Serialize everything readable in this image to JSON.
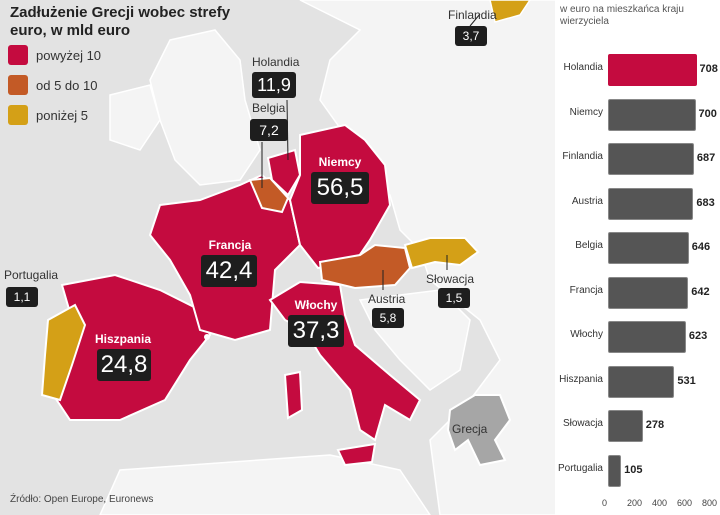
{
  "title": "Zadłużenie Grecji wobec strefy euro, w mld euro",
  "legend": [
    {
      "label": "powyżej 10",
      "color": "#c40b3f"
    },
    {
      "label": "od 5 do 10",
      "color": "#c35a26"
    },
    {
      "label": "poniżej 5",
      "color": "#d4a017"
    }
  ],
  "colors": {
    "sea": "#e3e3e3",
    "land": "#f4f4f4",
    "greece": "#a6a6a6",
    "box": "#1e1e1e",
    "bar_highlight": "#c40b3f",
    "bar_default": "#555555"
  },
  "countries": {
    "niemcy": {
      "name": "Niemcy",
      "value": "56,5"
    },
    "francja": {
      "name": "Francja",
      "value": "42,4"
    },
    "wlochy": {
      "name": "Włochy",
      "value": "37,3"
    },
    "hiszpania": {
      "name": "Hiszpania",
      "value": "24,8"
    },
    "holandia": {
      "name": "Holandia",
      "value": "11,9"
    },
    "belgia": {
      "name": "Belgia",
      "value": "7,2"
    },
    "austria": {
      "name": "Austria",
      "value": "5,8"
    },
    "finlandia": {
      "name": "Finlandia",
      "value": "3,7"
    },
    "slowacja": {
      "name": "Słowacja",
      "value": "1,5"
    },
    "portugalia": {
      "name": "Portugalia",
      "value": "1,1"
    },
    "grecja": {
      "name": "Grecja"
    }
  },
  "chart_data": {
    "type": "bar",
    "orientation": "horizontal",
    "subtitle": "w euro na mieszkańca kraju wierzyciela",
    "categories": [
      "Holandia",
      "Niemcy",
      "Finlandia",
      "Austria",
      "Belgia",
      "Francja",
      "Włochy",
      "Hiszpania",
      "Słowacja",
      "Portugalia"
    ],
    "values": [
      708,
      700,
      687,
      683,
      646,
      642,
      623,
      531,
      278,
      105
    ],
    "highlight": "Holandia",
    "xlim": [
      0,
      800
    ],
    "xticks": [
      "0",
      "200",
      "400",
      "600",
      "800"
    ]
  },
  "source": "Źródło: Open Europe, Euronews"
}
